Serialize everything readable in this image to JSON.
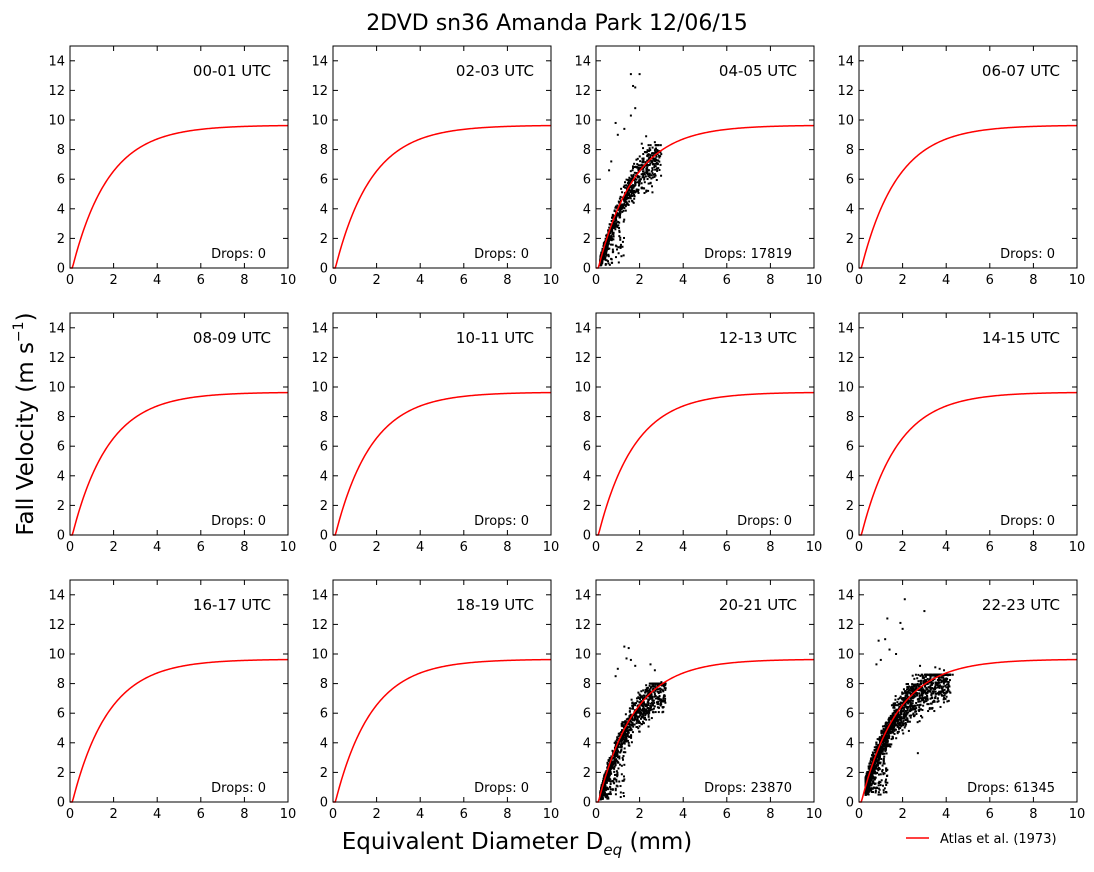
{
  "figure": {
    "title": "2DVD sn36 Amanda Park 12/06/15",
    "xlabel": "Equivalent Diameter D",
    "xlabel_subscript": "eq",
    "xlabel_unit": " (mm)",
    "ylabel": "Fall Velocity (m s",
    "ylabel_exponent": "−1",
    "ylabel_close": ")",
    "legend_label": "Atlas et al. (1973)",
    "colors": {
      "model_curve": "#ff0000",
      "drops": "#000000",
      "axes": "#000000"
    }
  },
  "chart_data": {
    "type": "scatter",
    "layout": "grid 3 rows x 4 columns",
    "xlim": [
      0,
      10
    ],
    "ylim": [
      0,
      15
    ],
    "xticks": [
      0,
      2,
      4,
      6,
      8,
      10
    ],
    "yticks": [
      0,
      2,
      4,
      6,
      8,
      10,
      12,
      14
    ],
    "grid": false,
    "legend_position": "bottom-right, below grid",
    "model_curve": {
      "name": "Atlas et al. (1973)",
      "formula": "v = 9.65 - 10.3*exp(-0.6*D)",
      "samples": [
        {
          "D": 0,
          "v": 0
        },
        {
          "D": 1,
          "v": 4.0
        },
        {
          "D": 2,
          "v": 6.5
        },
        {
          "D": 3,
          "v": 8.0
        },
        {
          "D": 4,
          "v": 8.7
        },
        {
          "D": 6,
          "v": 9.4
        },
        {
          "D": 8,
          "v": 9.6
        },
        {
          "D": 10,
          "v": 9.6
        }
      ]
    },
    "panels": [
      {
        "label": "00-01 UTC",
        "drops_text": "Drops: 0",
        "drops": 0
      },
      {
        "label": "02-03 UTC",
        "drops_text": "Drops: 0",
        "drops": 0
      },
      {
        "label": "04-05 UTC",
        "drops_text": "Drops: 17819",
        "drops": 17819,
        "scatter": {
          "d_range": [
            0.2,
            3.0
          ],
          "bulk_v_range": [
            0.2,
            8.3
          ],
          "outliers": [
            [
              1.6,
              13.1
            ],
            [
              2.0,
              13.1
            ],
            [
              1.7,
              12.3
            ],
            [
              1.8,
              12.2
            ],
            [
              1.8,
              10.8
            ],
            [
              1.6,
              10.3
            ],
            [
              1.3,
              9.4
            ],
            [
              1.0,
              9.0
            ],
            [
              2.1,
              8.4
            ],
            [
              2.3,
              8.9
            ],
            [
              2.7,
              8.5
            ],
            [
              0.7,
              7.2
            ],
            [
              0.6,
              6.6
            ],
            [
              0.9,
              9.8
            ]
          ]
        }
      },
      {
        "label": "06-07 UTC",
        "drops_text": "Drops: 0",
        "drops": 0
      },
      {
        "label": "08-09 UTC",
        "drops_text": "Drops: 0",
        "drops": 0
      },
      {
        "label": "10-11 UTC",
        "drops_text": "Drops: 0",
        "drops": 0
      },
      {
        "label": "12-13 UTC",
        "drops_text": "Drops: 0",
        "drops": 0
      },
      {
        "label": "14-15 UTC",
        "drops_text": "Drops: 0",
        "drops": 0
      },
      {
        "label": "16-17 UTC",
        "drops_text": "Drops: 0",
        "drops": 0
      },
      {
        "label": "18-19 UTC",
        "drops_text": "Drops: 0",
        "drops": 0
      },
      {
        "label": "20-21 UTC",
        "drops_text": "Drops: 23870",
        "drops": 23870,
        "scatter": {
          "d_range": [
            0.2,
            3.2
          ],
          "bulk_v_range": [
            0.2,
            8.0
          ],
          "outliers": [
            [
              1.3,
              10.5
            ],
            [
              1.5,
              10.4
            ],
            [
              1.4,
              9.7
            ],
            [
              1.8,
              9.2
            ],
            [
              2.5,
              9.3
            ],
            [
              2.7,
              8.9
            ],
            [
              1.0,
              9.0
            ],
            [
              0.9,
              8.5
            ],
            [
              1.6,
              9.6
            ],
            [
              3.0,
              8.1
            ]
          ]
        }
      },
      {
        "label": "22-23 UTC",
        "drops_text": "Drops: 61345",
        "drops": 61345,
        "scatter": {
          "d_range": [
            0.3,
            4.2
          ],
          "bulk_v_range": [
            0.5,
            8.6
          ],
          "outliers": [
            [
              2.1,
              13.7
            ],
            [
              3.0,
              12.9
            ],
            [
              1.3,
              12.4
            ],
            [
              1.9,
              12.1
            ],
            [
              2.0,
              11.7
            ],
            [
              1.2,
              11.0
            ],
            [
              0.9,
              10.9
            ],
            [
              1.4,
              10.3
            ],
            [
              1.7,
              10.0
            ],
            [
              3.5,
              9.1
            ],
            [
              3.7,
              9.0
            ],
            [
              2.8,
              9.2
            ],
            [
              4.3,
              8.6
            ],
            [
              3.9,
              8.9
            ],
            [
              1.0,
              9.6
            ],
            [
              0.8,
              9.3
            ],
            [
              2.7,
              3.3
            ],
            [
              1.3,
              1.3
            ],
            [
              1.1,
              1.1
            ]
          ]
        }
      }
    ]
  }
}
